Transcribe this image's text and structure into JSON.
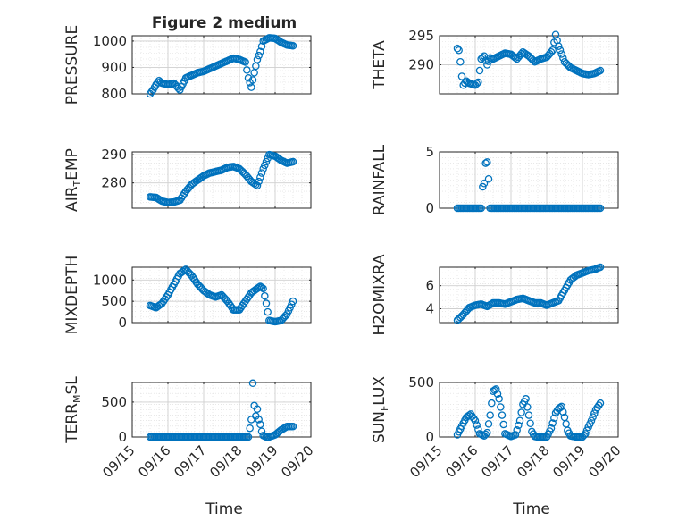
{
  "title": "Figure 2 medium",
  "xlabel": "Time",
  "x_ticks": [
    "09/15",
    "09/16",
    "09/17",
    "09/18",
    "09/19",
    "09/20"
  ],
  "marker_color": "#0072BD",
  "chart_data": [
    {
      "type": "scatter",
      "ylabel": "PRESSURE",
      "ylim": [
        800,
        1020
      ],
      "yticks": [
        "800",
        "900",
        "1000"
      ],
      "grid": true,
      "x": [
        "09/15 12:00",
        "09/15 14:00",
        "09/15 16:00",
        "09/15 18:00",
        "09/15 20:00",
        "09/16 00:00",
        "09/16 04:00",
        "09/16 08:00",
        "09/16 12:00",
        "09/16 16:00",
        "09/16 20:00",
        "09/17 00:00",
        "09/17 04:00",
        "09/17 08:00",
        "09/17 12:00",
        "09/17 16:00",
        "09/17 20:00",
        "09/18 00:00",
        "09/18 04:00",
        "09/18 06:00",
        "09/18 08:00",
        "09/18 10:00",
        "09/18 12:00",
        "09/18 14:00",
        "09/18 16:00",
        "09/18 20:00",
        "09/19 00:00",
        "09/19 04:00",
        "09/19 08:00",
        "09/19 12:00"
      ],
      "y": [
        800,
        815,
        835,
        850,
        840,
        835,
        840,
        815,
        860,
        870,
        880,
        885,
        895,
        905,
        915,
        925,
        935,
        930,
        920,
        860,
        825,
        880,
        930,
        960,
        1000,
        1012,
        1010,
        995,
        985,
        982
      ]
    },
    {
      "type": "scatter",
      "ylabel": "THETA",
      "ylim": [
        285,
        295
      ],
      "yticks": [
        "290",
        "295"
      ],
      "grid": true,
      "x": [
        "09/15 12:00",
        "09/15 13:00",
        "09/15 14:00",
        "09/15 15:00",
        "09/15 16:00",
        "09/15 18:00",
        "09/15 20:00",
        "09/16 00:00",
        "09/16 02:00",
        "09/16 04:00",
        "09/16 06:00",
        "09/16 08:00",
        "09/16 10:00",
        "09/16 12:00",
        "09/16 16:00",
        "09/16 20:00",
        "09/17 00:00",
        "09/17 04:00",
        "09/17 08:00",
        "09/17 12:00",
        "09/17 16:00",
        "09/17 20:00",
        "09/18 00:00",
        "09/18 04:00",
        "09/18 06:00",
        "09/18 08:00",
        "09/18 12:00",
        "09/18 16:00",
        "09/18 20:00",
        "09/19 00:00",
        "09/19 04:00",
        "09/19 08:00",
        "09/19 12:00"
      ],
      "y": [
        292.8,
        292.5,
        290.5,
        288.0,
        286.5,
        287.2,
        286.8,
        286.5,
        287.0,
        291.0,
        291.5,
        290.0,
        291.2,
        291.0,
        291.5,
        292.0,
        291.8,
        291.0,
        292.2,
        291.5,
        290.5,
        291.0,
        291.3,
        292.5,
        295.2,
        293.2,
        290.5,
        289.5,
        289.0,
        288.5,
        288.3,
        288.5,
        289.0
      ]
    },
    {
      "type": "scatter",
      "ylabel": "AIR_TEMP",
      "ylim": [
        271,
        291
      ],
      "yticks": [
        "280",
        "290"
      ],
      "grid": true,
      "x": [
        "09/15 12:00",
        "09/15 16:00",
        "09/15 20:00",
        "09/16 00:00",
        "09/16 04:00",
        "09/16 08:00",
        "09/16 12:00",
        "09/16 16:00",
        "09/16 20:00",
        "09/17 00:00",
        "09/17 04:00",
        "09/17 08:00",
        "09/17 12:00",
        "09/17 16:00",
        "09/17 20:00",
        "09/18 00:00",
        "09/18 04:00",
        "09/18 08:00",
        "09/18 12:00",
        "09/18 16:00",
        "09/18 20:00",
        "09/19 00:00",
        "09/19 04:00",
        "09/19 08:00",
        "09/19 12:00"
      ],
      "y": [
        275,
        274.8,
        273.5,
        273.0,
        273.2,
        273.8,
        277.0,
        279.5,
        281.0,
        282.5,
        283.5,
        284.0,
        284.5,
        285.5,
        285.8,
        285.0,
        283.0,
        280.5,
        279.0,
        285.0,
        290.0,
        289.5,
        288.0,
        287.0,
        287.5
      ]
    },
    {
      "type": "scatter",
      "ylabel": "RAINFALL",
      "ylim": [
        0,
        5
      ],
      "yticks": [
        "0",
        "5"
      ],
      "grid": true,
      "x": [
        "09/15 12:00",
        "09/15 18:00",
        "09/16 00:00",
        "09/16 04:00",
        "09/16 05:00",
        "09/16 06:00",
        "09/16 07:00",
        "09/16 08:00",
        "09/16 09:00",
        "09/16 10:00",
        "09/16 12:00",
        "09/16 18:00",
        "09/17 00:00",
        "09/17 06:00",
        "09/17 12:00",
        "09/17 18:00",
        "09/18 00:00",
        "09/18 06:00",
        "09/18 12:00",
        "09/18 18:00",
        "09/19 00:00",
        "09/19 06:00",
        "09/19 12:00"
      ],
      "y": [
        0,
        0,
        0,
        0,
        1.9,
        2.2,
        4.0,
        4.1,
        2.6,
        0,
        0,
        0,
        0,
        0,
        0,
        0,
        0,
        0,
        0,
        0,
        0,
        0,
        0
      ]
    },
    {
      "type": "scatter",
      "ylabel": "MIXDEPTH",
      "ylim": [
        0,
        1300
      ],
      "yticks": [
        "0",
        "500",
        "1000"
      ],
      "grid": true,
      "x": [
        "09/15 12:00",
        "09/15 16:00",
        "09/15 20:00",
        "09/16 00:00",
        "09/16 04:00",
        "09/16 08:00",
        "09/16 12:00",
        "09/16 16:00",
        "09/16 20:00",
        "09/17 00:00",
        "09/17 04:00",
        "09/17 08:00",
        "09/17 12:00",
        "09/17 16:00",
        "09/17 20:00",
        "09/18 00:00",
        "09/18 04:00",
        "09/18 08:00",
        "09/18 12:00",
        "09/18 14:00",
        "09/18 16:00",
        "09/18 18:00",
        "09/18 20:00",
        "09/19 00:00",
        "09/19 04:00",
        "09/19 08:00",
        "09/19 12:00"
      ],
      "y": [
        400,
        350,
        450,
        650,
        900,
        1150,
        1250,
        1100,
        900,
        750,
        650,
        600,
        650,
        500,
        300,
        300,
        500,
        700,
        800,
        850,
        800,
        450,
        50,
        20,
        50,
        200,
        500
      ]
    },
    {
      "type": "scatter",
      "ylabel": "H2OMIXRA",
      "ylim": [
        2.8,
        7.6
      ],
      "yticks": [
        "4",
        "6"
      ],
      "grid": true,
      "x": [
        "09/15 12:00",
        "09/15 16:00",
        "09/15 20:00",
        "09/16 00:00",
        "09/16 04:00",
        "09/16 08:00",
        "09/16 12:00",
        "09/16 16:00",
        "09/16 20:00",
        "09/17 00:00",
        "09/17 04:00",
        "09/17 08:00",
        "09/17 12:00",
        "09/17 16:00",
        "09/17 20:00",
        "09/18 00:00",
        "09/18 04:00",
        "09/18 08:00",
        "09/18 12:00",
        "09/18 16:00",
        "09/18 20:00",
        "09/19 00:00",
        "09/19 04:00",
        "09/19 08:00",
        "09/19 12:00"
      ],
      "y": [
        3.0,
        3.5,
        4.1,
        4.3,
        4.4,
        4.2,
        4.5,
        4.5,
        4.4,
        4.6,
        4.8,
        4.9,
        4.7,
        4.5,
        4.5,
        4.3,
        4.5,
        4.7,
        5.6,
        6.5,
        6.9,
        7.1,
        7.3,
        7.4,
        7.6
      ]
    },
    {
      "type": "scatter",
      "ylabel": "TERR_MSL",
      "ylim": [
        0,
        780
      ],
      "yticks": [
        "0",
        "500"
      ],
      "grid": true,
      "x": [
        "09/15 12:00",
        "09/15 18:00",
        "09/16 00:00",
        "09/16 06:00",
        "09/16 12:00",
        "09/16 18:00",
        "09/17 00:00",
        "09/17 06:00",
        "09/17 12:00",
        "09/17 18:00",
        "09/18 00:00",
        "09/18 06:00",
        "09/18 08:00",
        "09/18 09:00",
        "09/18 10:00",
        "09/18 11:00",
        "09/18 12:00",
        "09/18 13:00",
        "09/18 14:00",
        "09/18 15:00",
        "09/18 16:00",
        "09/18 18:00",
        "09/18 20:00",
        "09/19 00:00",
        "09/19 04:00",
        "09/19 08:00",
        "09/19 12:00"
      ],
      "y": [
        0,
        0,
        0,
        0,
        0,
        0,
        0,
        0,
        0,
        0,
        0,
        0,
        250,
        770,
        450,
        300,
        400,
        250,
        180,
        80,
        20,
        0,
        0,
        30,
        100,
        150,
        150
      ]
    },
    {
      "type": "scatter",
      "ylabel": "SUN_FLUX",
      "ylim": [
        0,
        500
      ],
      "yticks": [
        "0",
        "500"
      ],
      "grid": true,
      "x": [
        "09/15 12:00",
        "09/15 15:00",
        "09/15 18:00",
        "09/15 21:00",
        "09/16 00:00",
        "09/16 03:00",
        "09/16 06:00",
        "09/16 08:00",
        "09/16 10:00",
        "09/16 12:00",
        "09/16 14:00",
        "09/16 16:00",
        "09/16 18:00",
        "09/16 20:00",
        "09/17 00:00",
        "09/17 03:00",
        "09/17 06:00",
        "09/17 08:00",
        "09/17 10:00",
        "09/17 12:00",
        "09/17 14:00",
        "09/17 16:00",
        "09/17 18:00",
        "09/17 20:00",
        "09/18 00:00",
        "09/18 03:00",
        "09/18 06:00",
        "09/18 08:00",
        "09/18 10:00",
        "09/18 12:00",
        "09/18 14:00",
        "09/18 16:00",
        "09/18 18:00",
        "09/18 20:00",
        "09/19 00:00",
        "09/19 02:00",
        "09/19 06:00",
        "09/19 09:00",
        "09/19 12:00"
      ],
      "y": [
        20,
        100,
        180,
        210,
        150,
        30,
        10,
        40,
        200,
        420,
        440,
        350,
        200,
        30,
        5,
        20,
        150,
        300,
        350,
        200,
        50,
        5,
        0,
        0,
        0,
        80,
        220,
        260,
        280,
        180,
        60,
        10,
        5,
        0,
        0,
        30,
        150,
        250,
        310
      ]
    }
  ]
}
